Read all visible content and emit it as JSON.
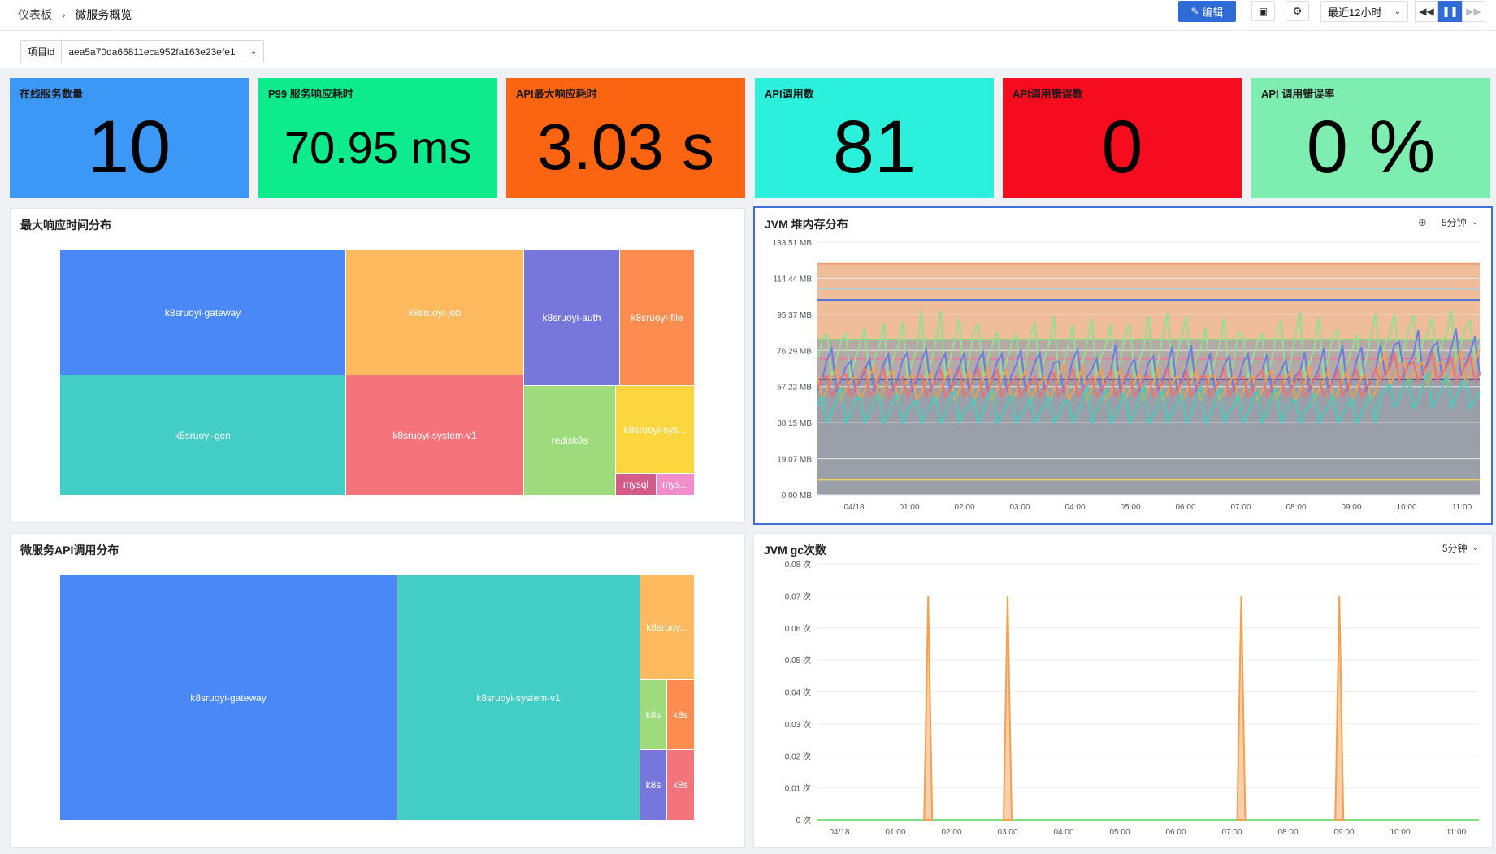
{
  "breadcrumb": {
    "root": "仪表板",
    "current": "微服务概览"
  },
  "toolbar": {
    "edit_label": "编辑",
    "time_range": "最近12小时"
  },
  "filter": {
    "label": "项目id",
    "value": "aea5a70da66811eca952fa163e23efe1"
  },
  "stats": [
    {
      "title": "在线服务数量",
      "value": "10",
      "color": "#3c98f6"
    },
    {
      "title": "P99 服务响应耗时",
      "value": "70.95 ms",
      "color": "#0deb8c"
    },
    {
      "title": "API最大响应耗时",
      "value": "3.03 s",
      "color": "#fb6512"
    },
    {
      "title": "API调用数",
      "value": "81",
      "color": "#2bf0db"
    },
    {
      "title": "API调用错误数",
      "value": "0",
      "color": "#f50c1f"
    },
    {
      "title": "API 调用错误率",
      "value": "0 %",
      "color": "#7eedb0"
    }
  ],
  "treemap_response": {
    "title": "最大响应时间分布",
    "items": [
      {
        "label": "k8sruoyi-gateway",
        "color": "#4a88f7"
      },
      {
        "label": "k8sruoyi-gen",
        "color": "#42cec6"
      },
      {
        "label": "k8sruoyi-job",
        "color": "#fcb95d"
      },
      {
        "label": "k8sruoyi-system-v1",
        "color": "#f5737b"
      },
      {
        "label": "k8sruoyi-auth",
        "color": "#7777db"
      },
      {
        "label": "redisk8s",
        "color": "#9ddb7d"
      },
      {
        "label": "k8sruoyi-file",
        "color": "#fc8d4e"
      },
      {
        "label": "k8sruoyi-sys...",
        "color": "#fbd63e"
      },
      {
        "label": "mysql",
        "color": "#d45a88"
      },
      {
        "label": "mys...",
        "color": "#f28dcb"
      }
    ]
  },
  "treemap_api": {
    "title": "微服务API调用分布",
    "items": [
      {
        "label": "k8sruoyi-gateway",
        "color": "#4a88f7"
      },
      {
        "label": "k8sruoyi-system-v1",
        "color": "#42cec6"
      },
      {
        "label": "k8sruoy...",
        "color": "#fcb95d"
      },
      {
        "label": "k8s",
        "color": "#9ddb7d"
      },
      {
        "label": "k8s",
        "color": "#fc8d4e"
      },
      {
        "label": "k8s",
        "color": "#7777db"
      },
      {
        "label": "k8s",
        "color": "#f5737b"
      }
    ]
  },
  "jvm_heap": {
    "title": "JVM 堆内存分布",
    "interval": "5分钟"
  },
  "jvm_gc": {
    "title": "JVM gc次数",
    "interval": "5分钟"
  },
  "chart_data": [
    {
      "type": "line",
      "title": "JVM 堆内存分布",
      "x": [
        "04/18",
        "01:00",
        "02:00",
        "03:00",
        "04:00",
        "05:00",
        "06:00",
        "07:00",
        "08:00",
        "09:00",
        "10:00",
        "11:00"
      ],
      "y_ticks": [
        "0.00 MB",
        "19.07 MB",
        "38.15 MB",
        "57.22 MB",
        "76.29 MB",
        "95.37 MB",
        "114.44 MB",
        "133.51 MB"
      ],
      "ylim": [
        0,
        133.51
      ],
      "series": [
        {
          "color": "#f0a070",
          "min": 122,
          "max": 122
        },
        {
          "color": "#9ed6e6",
          "min": 109,
          "max": 109
        },
        {
          "color": "#4a6fd6",
          "min": 103,
          "max": 103
        },
        {
          "color": "#7ee07e",
          "min": 82,
          "max": 82
        },
        {
          "color": "#f5739b",
          "min": 72,
          "max": 72
        },
        {
          "color": "#2f4fa0",
          "min": 61,
          "max": 61
        },
        {
          "color": "#f0d060",
          "min": 8,
          "max": 8
        },
        {
          "color": "#8fe08f",
          "min": 62,
          "max": 98
        },
        {
          "color": "#6a7ce8",
          "min": 55,
          "max": 80
        },
        {
          "color": "#f5a04a",
          "min": 50,
          "max": 70
        },
        {
          "color": "#3fd0c0",
          "min": 38,
          "max": 58
        },
        {
          "color": "#f07070",
          "min": 52,
          "max": 68
        }
      ]
    },
    {
      "type": "area",
      "title": "JVM gc次数",
      "x": [
        "04/18",
        "01:00",
        "02:00",
        "03:00",
        "04:00",
        "05:00",
        "06:00",
        "07:00",
        "08:00",
        "09:00",
        "10:00",
        "11:00"
      ],
      "y_ticks": [
        "0 次",
        "0.01 次",
        "0.02 次",
        "0.03 次",
        "0.04 次",
        "0.05 次",
        "0.06 次",
        "0.07 次",
        "0.08 次"
      ],
      "ylim": [
        0,
        0.08
      ],
      "peaks": [
        {
          "x": "01:35",
          "value": 0.07
        },
        {
          "x": "03:00",
          "value": 0.07
        },
        {
          "x": "07:10",
          "value": 0.07
        },
        {
          "x": "08:55",
          "value": 0.07
        }
      ],
      "line_colors": [
        "#f5a04a",
        "#7ee07e"
      ]
    }
  ]
}
